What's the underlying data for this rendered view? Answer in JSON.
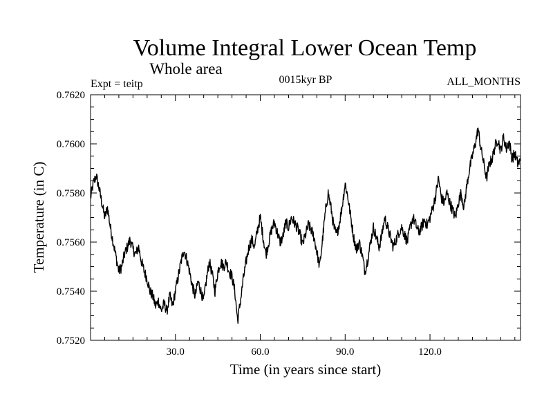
{
  "chart_data": {
    "type": "line",
    "title": "Volume Integral Lower Ocean Temp",
    "subtitle": "Whole area",
    "expt_label": "Expt = teitp",
    "period_label": "0015kyr BP",
    "months_label": "ALL_MONTHS",
    "xlabel": "Time (in years since start)",
    "ylabel": "Temperature (in C)",
    "xlim": [
      0,
      152
    ],
    "ylim": [
      0.752,
      0.762
    ],
    "x_ticks": [
      30,
      60,
      90,
      120
    ],
    "x_tick_labels": [
      "30.0",
      "60.0",
      "90.0",
      "120.0"
    ],
    "y_ticks": [
      0.752,
      0.754,
      0.756,
      0.758,
      0.76,
      0.762
    ],
    "y_tick_labels": [
      "0.7520",
      "0.7540",
      "0.7560",
      "0.7580",
      "0.7600",
      "0.7620"
    ],
    "series": [
      {
        "name": "Volume integral lower ocean temp",
        "x": [
          0,
          1,
          2,
          3,
          4,
          5,
          6,
          7,
          8,
          9,
          10,
          11,
          12,
          13,
          14,
          15,
          16,
          17,
          18,
          19,
          20,
          21,
          22,
          23,
          24,
          25,
          26,
          27,
          28,
          29,
          30,
          31,
          32,
          33,
          34,
          35,
          36,
          37,
          38,
          39,
          40,
          41,
          42,
          43,
          44,
          45,
          46,
          47,
          48,
          49,
          50,
          51,
          52,
          53,
          54,
          55,
          56,
          57,
          58,
          59,
          60,
          61,
          62,
          63,
          64,
          65,
          66,
          67,
          68,
          69,
          70,
          71,
          72,
          73,
          74,
          75,
          76,
          77,
          78,
          79,
          80,
          81,
          82,
          83,
          84,
          85,
          86,
          87,
          88,
          89,
          90,
          91,
          92,
          93,
          94,
          95,
          96,
          97,
          98,
          99,
          100,
          101,
          102,
          103,
          104,
          105,
          106,
          107,
          108,
          109,
          110,
          111,
          112,
          113,
          114,
          115,
          116,
          117,
          118,
          119,
          120,
          121,
          122,
          123,
          124,
          125,
          126,
          127,
          128,
          129,
          130,
          131,
          132,
          133,
          134,
          135,
          136,
          137,
          138,
          139,
          140,
          141,
          142,
          143,
          144,
          145,
          146,
          147,
          148,
          149,
          150,
          151,
          152
        ],
        "values": [
          0.7578,
          0.7584,
          0.7587,
          0.7582,
          0.7576,
          0.757,
          0.7574,
          0.7566,
          0.756,
          0.7554,
          0.7548,
          0.755,
          0.7555,
          0.7558,
          0.7561,
          0.7557,
          0.7555,
          0.7558,
          0.7552,
          0.7548,
          0.7545,
          0.754,
          0.7538,
          0.7534,
          0.7536,
          0.7532,
          0.7535,
          0.7532,
          0.7538,
          0.7534,
          0.754,
          0.7546,
          0.7552,
          0.7557,
          0.7553,
          0.7548,
          0.7542,
          0.7538,
          0.7544,
          0.754,
          0.7536,
          0.7545,
          0.7552,
          0.7547,
          0.754,
          0.7548,
          0.7552,
          0.755,
          0.7552,
          0.7548,
          0.7546,
          0.754,
          0.7528,
          0.7536,
          0.7545,
          0.7552,
          0.7558,
          0.7561,
          0.7558,
          0.7565,
          0.757,
          0.7562,
          0.7555,
          0.756,
          0.7565,
          0.7568,
          0.7564,
          0.756,
          0.7562,
          0.7568,
          0.7566,
          0.757,
          0.7568,
          0.7566,
          0.7563,
          0.7559,
          0.7563,
          0.7567,
          0.7565,
          0.7562,
          0.7556,
          0.755,
          0.7561,
          0.7572,
          0.758,
          0.7574,
          0.7566,
          0.7563,
          0.7568,
          0.7575,
          0.7584,
          0.7578,
          0.757,
          0.7562,
          0.7557,
          0.756,
          0.7555,
          0.7548,
          0.7553,
          0.756,
          0.7566,
          0.7562,
          0.7558,
          0.7563,
          0.757,
          0.7566,
          0.7562,
          0.7558,
          0.7561,
          0.7564,
          0.7566,
          0.7563,
          0.756,
          0.7566,
          0.757,
          0.7567,
          0.7564,
          0.7566,
          0.7569,
          0.7567,
          0.757,
          0.7574,
          0.7579,
          0.7586,
          0.7578,
          0.7576,
          0.758,
          0.7576,
          0.7573,
          0.757,
          0.7576,
          0.758,
          0.7574,
          0.7583,
          0.759,
          0.7595,
          0.76,
          0.7606,
          0.7598,
          0.7592,
          0.7586,
          0.7592,
          0.7594,
          0.7599,
          0.7602,
          0.7597,
          0.7603,
          0.7598,
          0.7601,
          0.7594,
          0.7596,
          0.7592,
          0.7593
        ]
      }
    ]
  }
}
